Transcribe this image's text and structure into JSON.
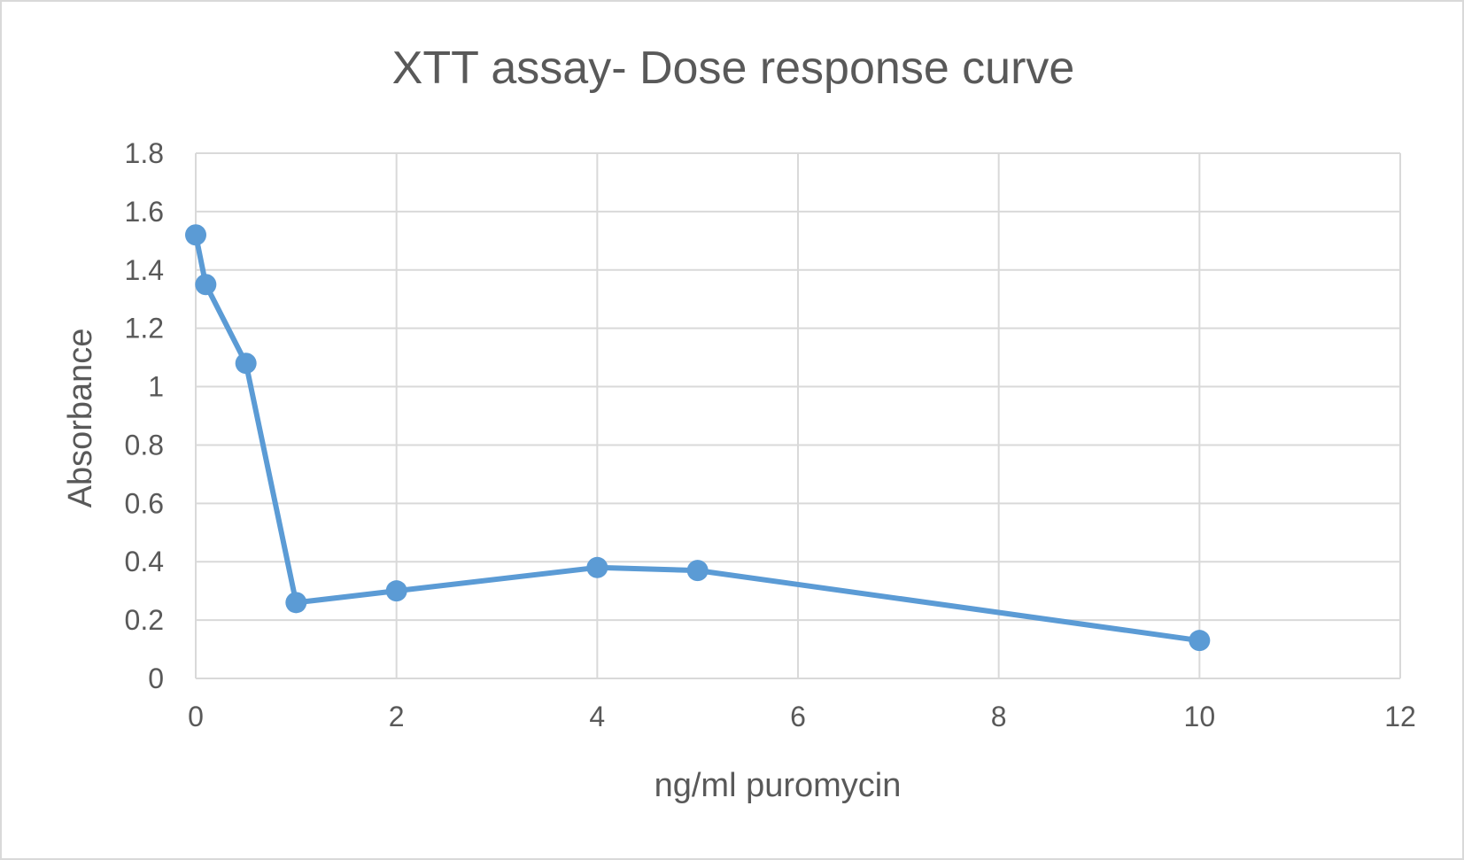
{
  "chart_data": {
    "type": "scatter",
    "title": "XTT assay- Dose response curve",
    "xlabel": "ng/ml puromycin",
    "ylabel": "Absorbance",
    "xlim": [
      0,
      12
    ],
    "ylim": [
      0,
      1.8
    ],
    "x_ticks": [
      0,
      2,
      4,
      6,
      8,
      10,
      12
    ],
    "y_ticks": [
      0,
      0.2,
      0.4,
      0.6,
      0.8,
      1,
      1.2,
      1.4,
      1.6,
      1.8
    ],
    "x_tick_labels": [
      "0",
      "2",
      "4",
      "6",
      "8",
      "10",
      "12"
    ],
    "y_tick_labels": [
      "0",
      "0.2",
      "0.4",
      "0.6",
      "0.8",
      "1",
      "1.2",
      "1.4",
      "1.6",
      "1.8"
    ],
    "grid": true,
    "legend": "none",
    "series": [
      {
        "color": "#5b9bd5",
        "style": "line-with-markers",
        "x": [
          0,
          0.1,
          0.5,
          1,
          2,
          4,
          5,
          10
        ],
        "y": [
          1.52,
          1.35,
          1.08,
          0.26,
          0.3,
          0.38,
          0.37,
          0.13
        ]
      }
    ]
  }
}
